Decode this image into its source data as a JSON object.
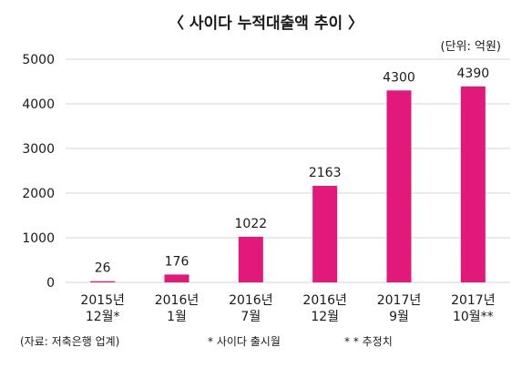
{
  "chart_data": {
    "type": "bar",
    "title": "〈 사이다 누적대출액 추이 〉",
    "unit_note": "(단위: 억원)",
    "categories": [
      [
        "2015년",
        "12월*"
      ],
      [
        "2016년",
        "1월"
      ],
      [
        "2016년",
        "7월"
      ],
      [
        "2016년",
        "12월"
      ],
      [
        "2017년",
        "9월"
      ],
      [
        "2017년",
        "10월**"
      ]
    ],
    "values": [
      26,
      176,
      1022,
      2163,
      4300,
      4390
    ],
    "data_labels": [
      "26",
      "176",
      "1022",
      "2163",
      "4300",
      "4390"
    ],
    "ylim": [
      0,
      5000
    ],
    "yticks": [
      0,
      1000,
      2000,
      3000,
      4000,
      5000
    ],
    "ytick_labels": [
      "0",
      "1000",
      "2000",
      "3000",
      "4000",
      "5000"
    ],
    "grid": true,
    "bar_color": "#e2197a",
    "grid_color": "#d4d4d4"
  },
  "footer": {
    "source": "(자료: 저축은행 업계)",
    "note1": "* 사이다 출시월",
    "note2": "* * 추정치"
  }
}
